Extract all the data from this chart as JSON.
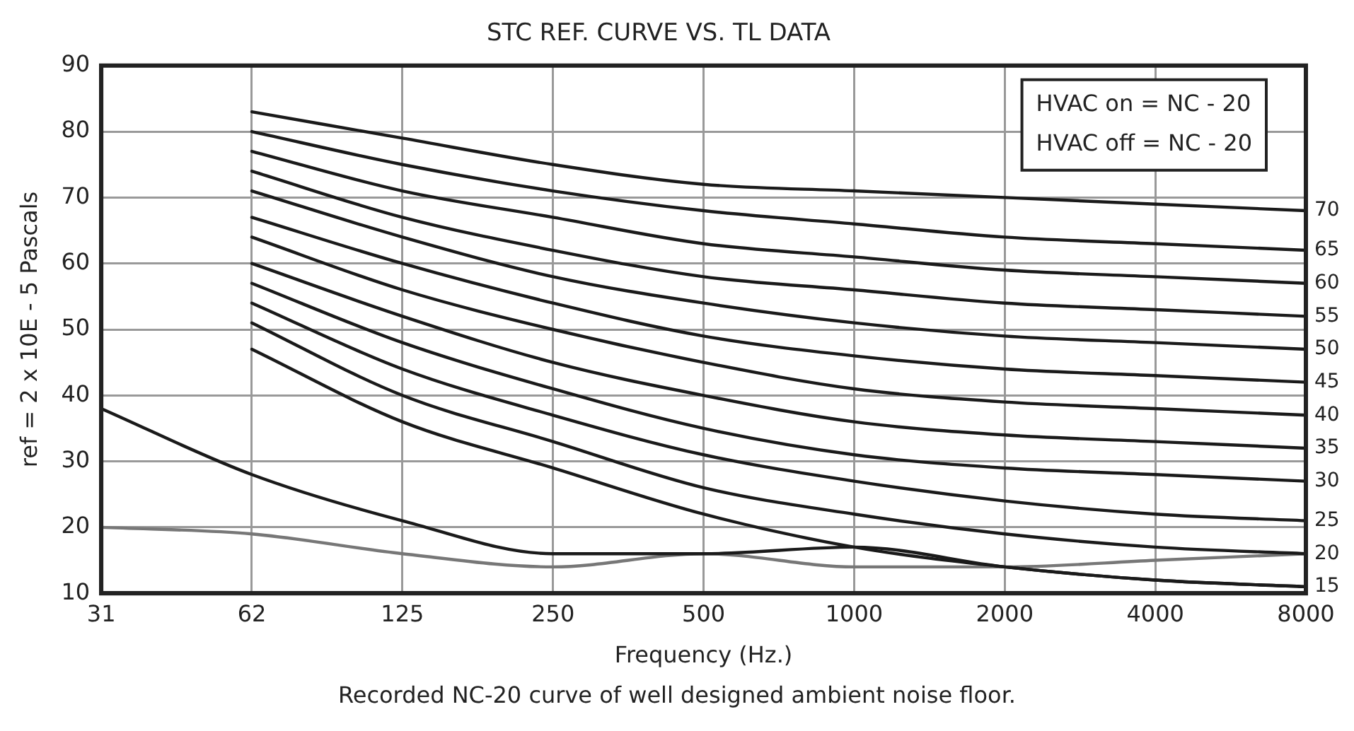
{
  "chart_data": {
    "type": "line",
    "title": "STC REF. CURVE VS. TL DATA",
    "xlabel": "Frequency (Hz.)",
    "ylabel": "ref = 2 x 10E - 5 Pascals",
    "categories": [
      "31",
      "62",
      "125",
      "250",
      "500",
      "1000",
      "2000",
      "4000",
      "8000"
    ],
    "ylim": [
      10,
      90
    ],
    "yticks": [
      10,
      20,
      30,
      40,
      50,
      60,
      70,
      80,
      90
    ],
    "grid": true,
    "legend": false,
    "marker": "none",
    "line_style": "solid",
    "annotations": [
      "HVAC on = NC - 20",
      "HVAC off = NC - 20",
      "Recorded NC-20 curve of well designed ambient noise floor."
    ],
    "series": [
      {
        "name": "70",
        "color": "#1a1a1a",
        "values": [
          null,
          83,
          79,
          75,
          72,
          71,
          70,
          69,
          68
        ]
      },
      {
        "name": "65",
        "color": "#1a1a1a",
        "values": [
          null,
          80,
          75,
          71,
          68,
          66,
          64,
          63,
          62
        ]
      },
      {
        "name": "60",
        "color": "#1a1a1a",
        "values": [
          null,
          77,
          71,
          67,
          63,
          61,
          59,
          58,
          57
        ]
      },
      {
        "name": "55",
        "color": "#1a1a1a",
        "values": [
          null,
          74,
          67,
          62,
          58,
          56,
          54,
          53,
          52
        ]
      },
      {
        "name": "50",
        "color": "#1a1a1a",
        "values": [
          null,
          71,
          64,
          58,
          54,
          51,
          49,
          48,
          47
        ]
      },
      {
        "name": "45",
        "color": "#1a1a1a",
        "values": [
          null,
          67,
          60,
          54,
          49,
          46,
          44,
          43,
          42
        ]
      },
      {
        "name": "40",
        "color": "#1a1a1a",
        "values": [
          null,
          64,
          56,
          50,
          45,
          41,
          39,
          38,
          37
        ]
      },
      {
        "name": "35",
        "color": "#1a1a1a",
        "values": [
          null,
          60,
          52,
          45,
          40,
          36,
          34,
          33,
          32
        ]
      },
      {
        "name": "30",
        "color": "#1a1a1a",
        "values": [
          null,
          57,
          48,
          41,
          35,
          31,
          29,
          28,
          27
        ]
      },
      {
        "name": "25",
        "color": "#1a1a1a",
        "values": [
          null,
          54,
          44,
          37,
          31,
          27,
          24,
          22,
          21
        ]
      },
      {
        "name": "20",
        "color": "#1a1a1a",
        "values": [
          null,
          51,
          40,
          33,
          26,
          22,
          19,
          17,
          16
        ]
      },
      {
        "name": "15",
        "color": "#1a1a1a",
        "values": [
          null,
          47,
          36,
          29,
          22,
          17,
          14,
          12,
          11
        ]
      },
      {
        "color": "#1a1a1a",
        "values": [
          38,
          28,
          21,
          16,
          16,
          17,
          14,
          12,
          11
        ]
      },
      {
        "color": "#777777",
        "values": [
          20,
          19,
          16,
          14,
          16,
          14,
          14,
          15,
          16
        ]
      }
    ]
  }
}
